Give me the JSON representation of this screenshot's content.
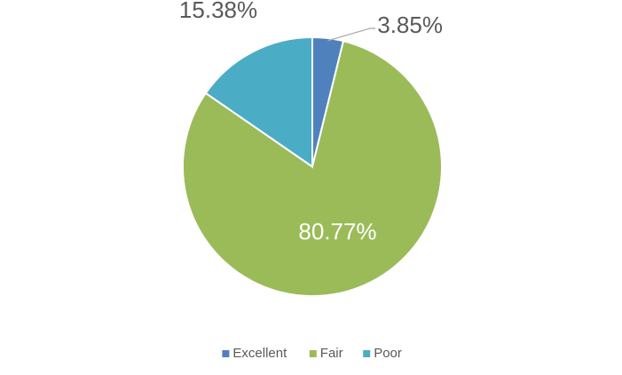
{
  "chart_data": {
    "type": "pie",
    "categories": [
      "Excellent",
      "Fair",
      "Poor"
    ],
    "values": [
      3.85,
      80.77,
      15.38
    ],
    "value_labels": [
      "3.85%",
      "80.77%",
      "15.38%"
    ],
    "colors": [
      "#4f81bd",
      "#9bbb59",
      "#4bacc6"
    ],
    "legend": "bottom"
  }
}
